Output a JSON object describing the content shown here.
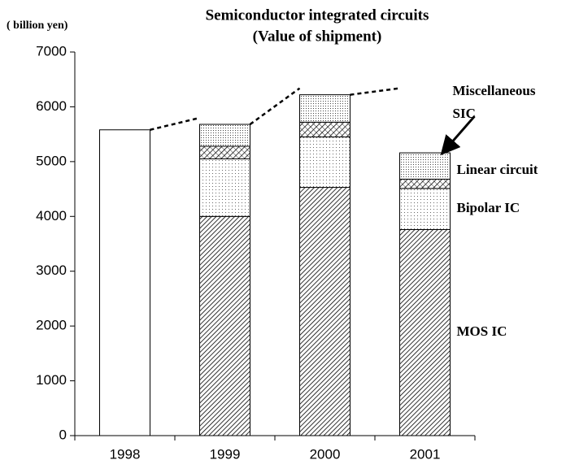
{
  "chart_data": {
    "type": "stacked-bar",
    "title": "Semiconductor integrated circuits",
    "subtitle": "(Value of shipment)",
    "y_label": "( billion yen)",
    "categories": [
      "1998",
      "1999",
      "2000",
      "2001"
    ],
    "values": [
      5580,
      null,
      null,
      null
    ],
    "series": [
      {
        "name": "MOS IC",
        "color": "#000000",
        "hatch": "diagonal",
        "values": [
          null,
          4000,
          4530,
          3760
        ]
      },
      {
        "name": "Bipolar IC",
        "color": "#000000",
        "hatch": "sparse-dots",
        "values": [
          null,
          1050,
          920,
          750
        ]
      },
      {
        "name": "Linear circuit",
        "color": "#000000",
        "hatch": "cross",
        "values": [
          null,
          230,
          270,
          170
        ]
      },
      {
        "name": "Miscellaneous SIC",
        "color": "#000000",
        "hatch": "dots",
        "values": [
          null,
          400,
          500,
          480
        ]
      }
    ],
    "ylim": [
      0,
      7000
    ],
    "yticks": [
      0,
      1000,
      2000,
      3000,
      4000,
      5000,
      6000,
      7000
    ],
    "grid": false
  }
}
